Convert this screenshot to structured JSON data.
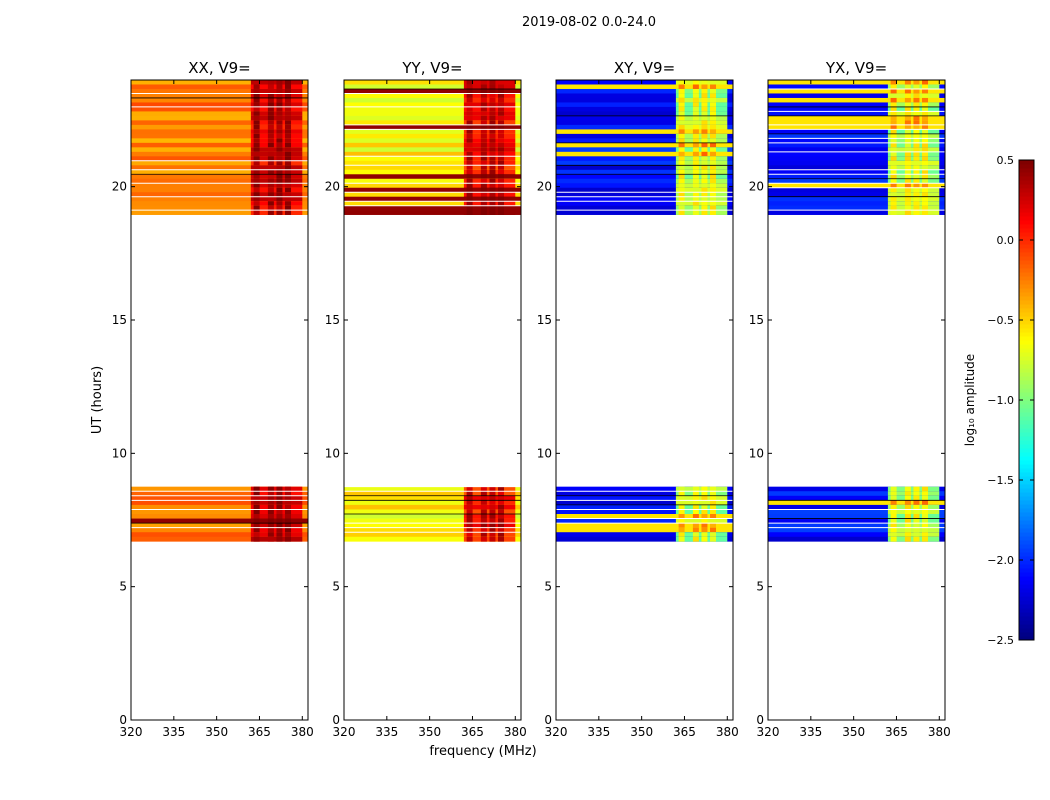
{
  "figure_title": "2019-08-02 0.0-24.0",
  "colors": {
    "background": "#ffffff",
    "axis": "#000000",
    "gap_line": "#ffffff"
  },
  "colormap": "jet",
  "chart_data": {
    "type": "heatmap",
    "title": "2019-08-02 0.0-24.0",
    "xlabel": "frequency (MHz)",
    "ylabel": "UT (hours)",
    "xlim": [
      320,
      382
    ],
    "ylim": [
      0,
      24
    ],
    "xticks": [
      320,
      335,
      350,
      365,
      380
    ],
    "yticks": [
      0,
      5,
      10,
      15,
      20
    ],
    "data_segments_ut_hours": [
      [
        6.7,
        8.75
      ],
      [
        18.95,
        24.0
      ]
    ],
    "bright_band_mhz": [
      362,
      380
    ],
    "bright_band_columns_mhz": [
      364,
      369,
      372,
      375
    ],
    "panels": [
      {
        "name": "XX",
        "title": "XX, V9=",
        "base_log_amp": -0.25,
        "band_log_amp": 0.15,
        "dark_row_log_amp": 0.45
      },
      {
        "name": "YY",
        "title": "YY, V9=",
        "base_log_amp": -0.6,
        "band_log_amp": 0.05,
        "dark_row_log_amp": 0.45
      },
      {
        "name": "XY",
        "title": "XY, V9=",
        "base_log_amp": -2.1,
        "band_log_amp": -0.9,
        "dark_row_log_amp": -0.55
      },
      {
        "name": "YX",
        "title": "YX, V9=",
        "base_log_amp": -2.1,
        "band_log_amp": -0.9,
        "dark_row_log_amp": -0.55
      }
    ],
    "colorbar": {
      "label": "log₁₀ amplitude",
      "min": -2.5,
      "max": 0.5,
      "ticks": [
        -2.5,
        -2.0,
        -1.5,
        -1.0,
        -0.5,
        0.0,
        0.5
      ],
      "tick_labels": [
        "−2.5",
        "−2.0",
        "−1.5",
        "−1.0",
        "−0.5",
        "0.0",
        "0.5"
      ]
    }
  }
}
